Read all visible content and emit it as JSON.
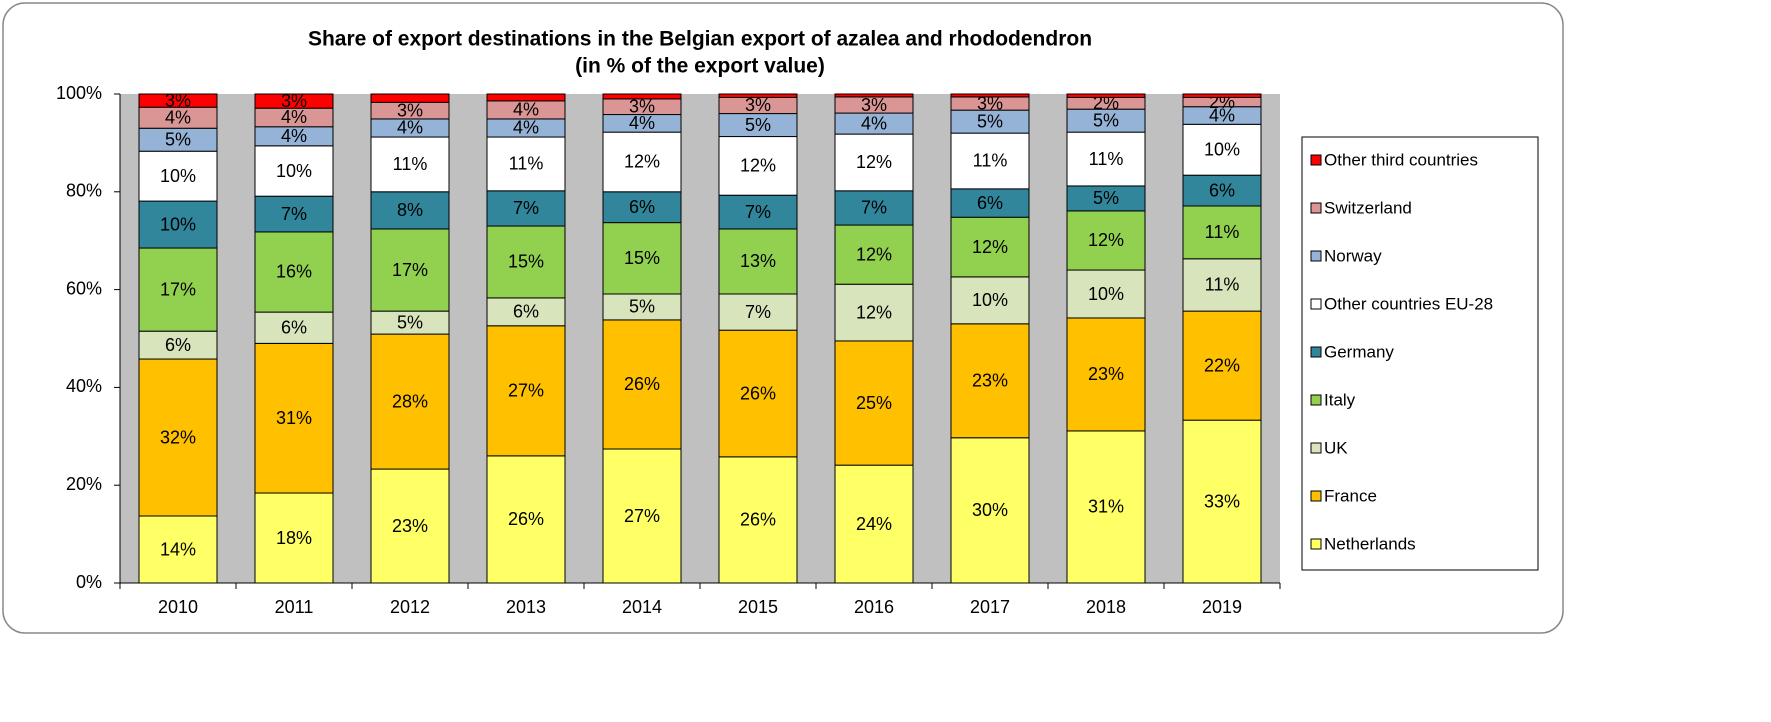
{
  "chart_data": {
    "type": "stacked_bar",
    "title": [
      "Share of  export destinations in  the Belgian export of azalea and rhododendron",
      "(in % of the export value)"
    ],
    "categories": [
      "2010",
      "2011",
      "2012",
      "2013",
      "2014",
      "2015",
      "2016",
      "2017",
      "2018",
      "2019"
    ],
    "series": [
      {
        "name": "Netherlands",
        "color": "#ffff66",
        "values": [
          13.7,
          18.4,
          23.3,
          26.0,
          27.4,
          25.8,
          24.1,
          29.7,
          31.1,
          33.3
        ],
        "value_labels": [
          "14%",
          "18%",
          "23%",
          "26%",
          "27%",
          "26%",
          "24%",
          "30%",
          "31%",
          "33%"
        ]
      },
      {
        "name": "France",
        "color": "#ffc000",
        "values": [
          32.1,
          30.6,
          27.6,
          26.6,
          26.4,
          25.9,
          25.4,
          23.3,
          23.1,
          22.3
        ],
        "value_labels": [
          "32%",
          "31%",
          "28%",
          "27%",
          "26%",
          "26%",
          "25%",
          "23%",
          "23%",
          "22%"
        ]
      },
      {
        "name": "UK",
        "color": "#d8e4bc",
        "values": [
          5.7,
          6.4,
          4.7,
          5.7,
          5.3,
          7.4,
          11.6,
          9.6,
          9.8,
          10.7
        ],
        "value_labels": [
          "6%",
          "6%",
          "5%",
          "6%",
          "5%",
          "7%",
          "12%",
          "10%",
          "10%",
          "11%"
        ]
      },
      {
        "name": "Italy",
        "color": "#92d050",
        "values": [
          17.0,
          16.4,
          16.8,
          14.7,
          14.6,
          13.3,
          12.1,
          12.2,
          12.1,
          10.8
        ],
        "value_labels": [
          "17%",
          "16%",
          "17%",
          "15%",
          "15%",
          "13%",
          "12%",
          "12%",
          "12%",
          "11%"
        ]
      },
      {
        "name": "Germany",
        "color": "#31869b",
        "values": [
          9.6,
          7.3,
          7.6,
          7.2,
          6.3,
          6.9,
          7.0,
          5.8,
          5.1,
          6.3
        ],
        "value_labels": [
          "10%",
          "7%",
          "8%",
          "7%",
          "6%",
          "7%",
          "7%",
          "6%",
          "5%",
          "6%"
        ]
      },
      {
        "name": "Other countries EU-28",
        "color": "#ffffff",
        "values": [
          10.2,
          10.3,
          11.2,
          11.0,
          12.2,
          12.0,
          11.6,
          11.4,
          11.0,
          10.4
        ],
        "value_labels": [
          "10%",
          "10%",
          "11%",
          "11%",
          "12%",
          "12%",
          "12%",
          "11%",
          "11%",
          "10%"
        ]
      },
      {
        "name": "Norway",
        "color": "#95b3d7",
        "values": [
          4.7,
          3.9,
          3.7,
          3.7,
          3.6,
          4.7,
          4.3,
          4.7,
          4.7,
          3.6
        ],
        "value_labels": [
          "5%",
          "4%",
          "4%",
          "4%",
          "4%",
          "5%",
          "4%",
          "5%",
          "5%",
          "4%"
        ]
      },
      {
        "name": "Switzerland",
        "color": "#da9694",
        "values": [
          4.3,
          3.8,
          3.4,
          3.7,
          3.2,
          3.3,
          3.3,
          2.7,
          2.4,
          1.9
        ],
        "value_labels": [
          "4%",
          "4%",
          "3%",
          "4%",
          "3%",
          "3%",
          "3%",
          "3%",
          "2%",
          "2%"
        ]
      },
      {
        "name": "Other third countries",
        "color": "#ff0000",
        "values": [
          2.7,
          2.9,
          1.7,
          1.4,
          1.0,
          0.7,
          0.6,
          0.6,
          0.7,
          0.7
        ],
        "value_labels": [
          "3%",
          "3%",
          null,
          null,
          null,
          null,
          null,
          null,
          null,
          null
        ]
      }
    ],
    "ylim": [
      0,
      100
    ],
    "yticks": [
      {
        "value": 0,
        "label": "0%"
      },
      {
        "value": 20,
        "label": "20%"
      },
      {
        "value": 40,
        "label": "40%"
      },
      {
        "value": 60,
        "label": "60%"
      },
      {
        "value": 80,
        "label": "80%"
      },
      {
        "value": 100,
        "label": "100%"
      }
    ],
    "grid": false,
    "legend": "right"
  }
}
